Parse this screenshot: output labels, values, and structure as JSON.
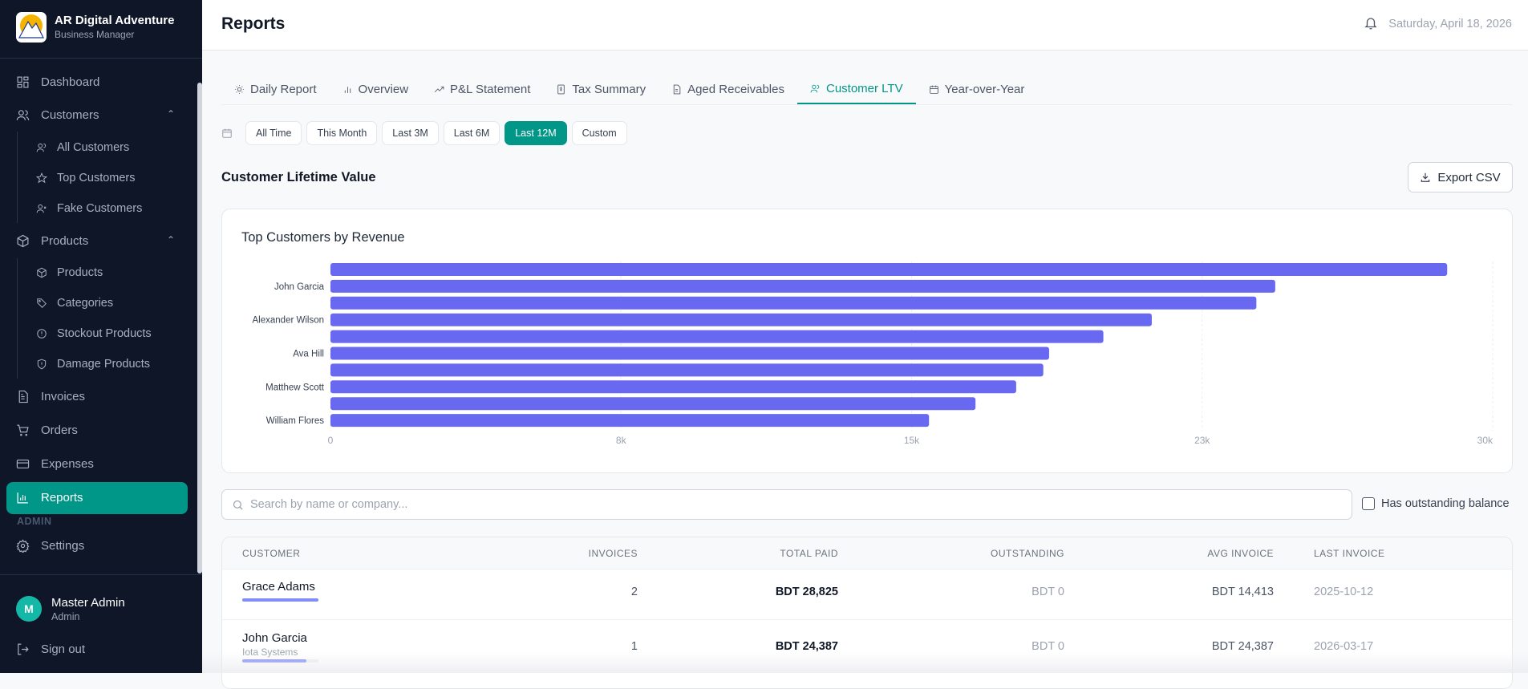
{
  "sidebar": {
    "brand": {
      "name": "AR Digital Adventure",
      "subtitle": "Business Manager",
      "logo_text": "DIGITAL Adventure"
    },
    "items": {
      "dashboard": "Dashboard",
      "customers": "Customers",
      "all_customers": "All Customers",
      "top_customers": "Top Customers",
      "fake_customers": "Fake Customers",
      "products": "Products",
      "products_sub": "Products",
      "categories": "Categories",
      "stockout": "Stockout Products",
      "damage": "Damage Products",
      "invoices": "Invoices",
      "orders": "Orders",
      "expenses": "Expenses",
      "reports": "Reports",
      "admin_section": "ADMIN",
      "settings": "Settings"
    },
    "user": {
      "initial": "M",
      "name": "Master Admin",
      "role": "Admin"
    },
    "signout": "Sign out"
  },
  "header": {
    "title": "Reports",
    "date": "Saturday, April 18, 2026"
  },
  "tabs": [
    {
      "label": "Daily Report",
      "icon": "sun-icon"
    },
    {
      "label": "Overview",
      "icon": "bar-chart-icon"
    },
    {
      "label": "P&L Statement",
      "icon": "trending-icon"
    },
    {
      "label": "Tax Summary",
      "icon": "receipt-icon"
    },
    {
      "label": "Aged Receivables",
      "icon": "file-icon"
    },
    {
      "label": "Customer LTV",
      "icon": "users-icon",
      "active": true
    },
    {
      "label": "Year-over-Year",
      "icon": "calendar-icon"
    }
  ],
  "ranges": [
    {
      "label": "All Time"
    },
    {
      "label": "This Month"
    },
    {
      "label": "Last 3M"
    },
    {
      "label": "Last 6M"
    },
    {
      "label": "Last 12M",
      "active": true
    },
    {
      "label": "Custom"
    }
  ],
  "section": {
    "title": "Customer Lifetime Value",
    "export_label": "Export CSV"
  },
  "colors": {
    "accent": "#009688",
    "bar": "#6869f0",
    "sidebar": "#0e1628"
  },
  "chart_data": {
    "type": "bar",
    "orientation": "horizontal",
    "title": "Top Customers by Revenue",
    "categories": [
      "",
      "John Garcia",
      "",
      "Alexander Wilson",
      "",
      "Ava Hill",
      "",
      "Matthew Scott",
      "",
      "William Flores"
    ],
    "values": [
      28825,
      24387,
      23900,
      21200,
      19950,
      18550,
      18400,
      17700,
      16650,
      15450
    ],
    "xlim": [
      0,
      30000
    ],
    "xticks": [
      {
        "value": 0,
        "label": "0"
      },
      {
        "value": 7500,
        "label": "8k"
      },
      {
        "value": 15000,
        "label": "15k"
      },
      {
        "value": 22500,
        "label": "23k"
      },
      {
        "value": 30000,
        "label": "30k"
      }
    ],
    "grid": "vertical dashed"
  },
  "filters": {
    "search_placeholder": "Search by name or company...",
    "search_value": "",
    "outstanding_label": "Has outstanding balance",
    "outstanding_checked": false
  },
  "table": {
    "columns": [
      "CUSTOMER",
      "INVOICES",
      "TOTAL PAID",
      "OUTSTANDING",
      "AVG INVOICE",
      "LAST INVOICE"
    ],
    "rows": [
      {
        "name": "Grace Adams",
        "company": "",
        "invoices": "2",
        "total_paid": "BDT 28,825",
        "outstanding": "BDT 0",
        "avg_invoice": "BDT 14,413",
        "last_invoice": "2025-10-12",
        "ltv_share": 1.0
      },
      {
        "name": "John Garcia",
        "company": "Iota Systems",
        "invoices": "1",
        "total_paid": "BDT 24,387",
        "outstanding": "BDT 0",
        "avg_invoice": "BDT 24,387",
        "last_invoice": "2026-03-17",
        "ltv_share": 0.846
      }
    ]
  }
}
